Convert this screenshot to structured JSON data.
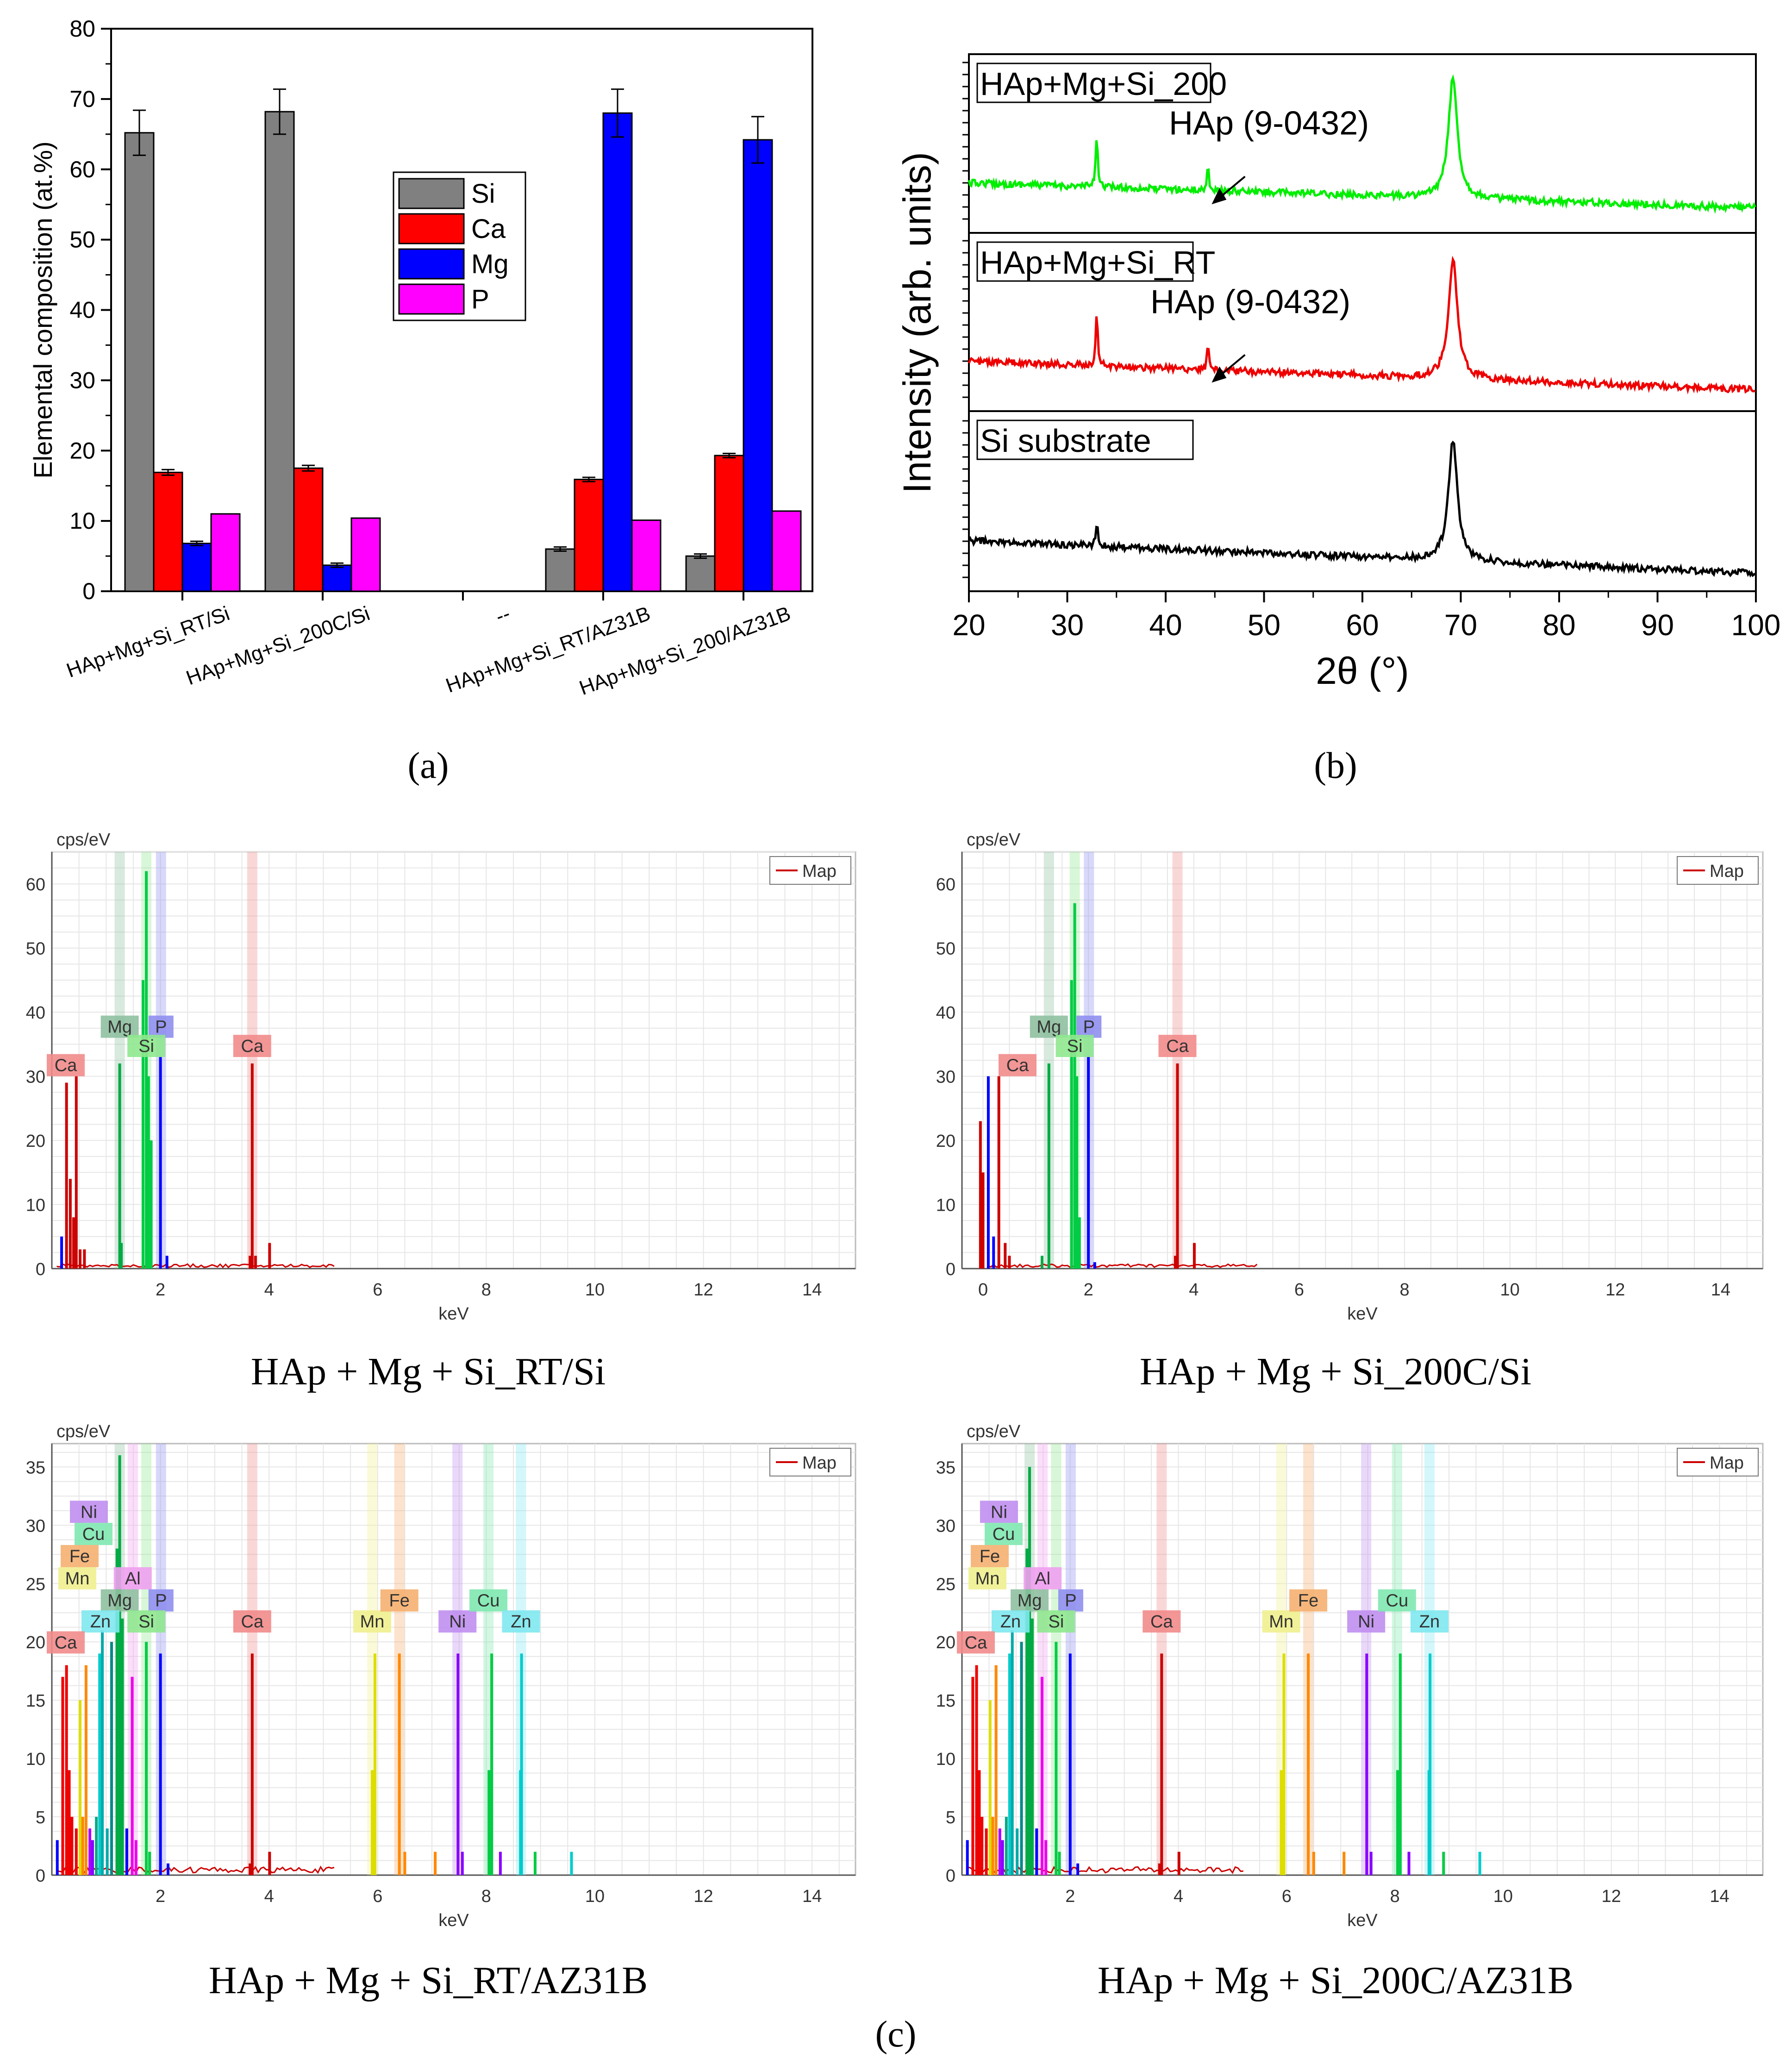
{
  "panel_labels": {
    "a": "(a)",
    "b": "(b)",
    "c": "(c)"
  },
  "colors": {
    "Si": "#808080",
    "Ca": "#ff0000",
    "Mg": "#0000ff",
    "P": "#ff00ff"
  },
  "chart_data": [
    {
      "id": "a",
      "type": "bar",
      "title": "",
      "xlabel": "",
      "ylabel": "Elemental composition (at.%)",
      "ylim": [
        0,
        80
      ],
      "yticks": [
        "0",
        "10",
        "20",
        "30",
        "40",
        "50",
        "60",
        "70",
        "80"
      ],
      "categories": [
        "HAp+Mg+Si_RT/Si",
        "HAp+Mg+Si_200C/Si",
        "--",
        "HAp+Mg+Si_RT/AZ31B",
        "HAp+Mg+Si_200/AZ31B"
      ],
      "legend_position": "center",
      "series": [
        {
          "name": "Si",
          "color": "#808080",
          "values": [
            65.2,
            68.2,
            0,
            6.0,
            5.0
          ],
          "errors": [
            3.2,
            3.2,
            0,
            0.3,
            0.3
          ]
        },
        {
          "name": "Ca",
          "color": "#ff0000",
          "values": [
            16.9,
            17.5,
            0,
            15.9,
            19.3
          ],
          "errors": [
            0.4,
            0.4,
            0,
            0.3,
            0.3
          ]
        },
        {
          "name": "Mg",
          "color": "#0000ff",
          "values": [
            6.8,
            3.7,
            0,
            68.0,
            64.2
          ],
          "errors": [
            0.3,
            0.3,
            0,
            3.4,
            3.3
          ]
        },
        {
          "name": "P",
          "color": "#ff00ff",
          "values": [
            11.0,
            10.4,
            0,
            10.1,
            11.4
          ],
          "errors": [
            0,
            0,
            0,
            0,
            0
          ]
        }
      ]
    },
    {
      "id": "b",
      "type": "line",
      "xlabel": "2θ (°)",
      "ylabel": "Intensity (arb. units)",
      "xlim": [
        20,
        100
      ],
      "xticks": [
        "20",
        "30",
        "40",
        "50",
        "60",
        "70",
        "80",
        "90",
        "100"
      ],
      "series": [
        {
          "name": "HAp+Mg+Si_200",
          "color": "#00ee00",
          "baseline": [
            0.72,
            0.86
          ],
          "peaks": [
            [
              33.0,
              0.45
            ],
            [
              44.3,
              0.2
            ],
            [
              69.2,
              1.0
            ]
          ],
          "annotation": "HAp (9-0432)"
        },
        {
          "name": "HAp+Mg+Si_RT",
          "color": "#ee0000",
          "baseline": [
            0.72,
            0.88
          ],
          "peaks": [
            [
              33.0,
              0.45
            ],
            [
              44.3,
              0.2
            ],
            [
              69.2,
              1.0
            ]
          ],
          "annotation": "HAp (9-0432)"
        },
        {
          "name": "Si substrate",
          "color": "#000000",
          "baseline": [
            0.72,
            0.9
          ],
          "peaks": [
            [
              33.0,
              0.2
            ],
            [
              69.2,
              1.0
            ]
          ],
          "annotation": ""
        }
      ]
    },
    {
      "id": "c1",
      "type": "bar",
      "subtype": "eds-spectrum",
      "caption": "HAp + Mg + Si_RT/Si",
      "unit_label": "cps/eV",
      "xlabel": "keV",
      "legend": "Map",
      "xlim": [
        0,
        14.8
      ],
      "ylim": [
        0,
        65
      ],
      "xticks": [
        "2",
        "4",
        "6",
        "8",
        "10",
        "12",
        "14"
      ],
      "yticks": [
        "0",
        "10",
        "20",
        "30",
        "40",
        "50",
        "60"
      ],
      "element_labels": [
        "Mg",
        "P",
        "Si",
        "Ca",
        "Ca"
      ],
      "lines": [
        {
          "x": 0.18,
          "y": 5,
          "color": "#0000ff"
        },
        {
          "x": 0.27,
          "y": 29,
          "color": "#cc0000"
        },
        {
          "x": 0.34,
          "y": 14,
          "color": "#cc0000"
        },
        {
          "x": 0.4,
          "y": 8,
          "color": "#cc0000"
        },
        {
          "x": 0.45,
          "y": 30,
          "color": "#cc0000"
        },
        {
          "x": 0.52,
          "y": 3,
          "color": "#cc0000"
        },
        {
          "x": 0.6,
          "y": 3,
          "color": "#cc0000"
        },
        {
          "x": 1.25,
          "y": 32,
          "color": "#00aa44"
        },
        {
          "x": 1.28,
          "y": 4,
          "color": "#00aa44"
        },
        {
          "x": 1.68,
          "y": 45,
          "color": "#00cc44"
        },
        {
          "x": 1.74,
          "y": 62,
          "color": "#00cc44"
        },
        {
          "x": 1.78,
          "y": 30,
          "color": "#00cc44"
        },
        {
          "x": 1.83,
          "y": 20,
          "color": "#00cc44"
        },
        {
          "x": 2.0,
          "y": 33,
          "color": "#0000ff"
        },
        {
          "x": 2.12,
          "y": 2,
          "color": "#0000ff"
        },
        {
          "x": 3.65,
          "y": 2,
          "color": "#cc0000"
        },
        {
          "x": 3.69,
          "y": 32,
          "color": "#cc0000"
        },
        {
          "x": 3.75,
          "y": 2,
          "color": "#cc0000"
        },
        {
          "x": 4.01,
          "y": 4,
          "color": "#cc0000"
        }
      ]
    },
    {
      "id": "c2",
      "type": "bar",
      "subtype": "eds-spectrum",
      "caption": "HAp + Mg + Si_200C/Si",
      "unit_label": "cps/eV",
      "xlabel": "keV",
      "legend": "Map",
      "xlim": [
        -0.4,
        14.8
      ],
      "ylim": [
        0,
        65
      ],
      "xticks": [
        "0",
        "2",
        "4",
        "6",
        "8",
        "10",
        "12",
        "14"
      ],
      "yticks": [
        "0",
        "10",
        "20",
        "30",
        "40",
        "50",
        "60"
      ],
      "element_labels": [
        "Mg",
        "P",
        "Si",
        "Ca",
        "Ca"
      ],
      "lines": [
        {
          "x": -0.05,
          "y": 23,
          "color": "#cc0000"
        },
        {
          "x": 0.0,
          "y": 15,
          "color": "#cc0000"
        },
        {
          "x": 0.1,
          "y": 30,
          "color": "#0000ff"
        },
        {
          "x": 0.2,
          "y": 5,
          "color": "#0000ff"
        },
        {
          "x": 0.3,
          "y": 30,
          "color": "#cc0000"
        },
        {
          "x": 0.42,
          "y": 4,
          "color": "#cc0000"
        },
        {
          "x": 0.5,
          "y": 2,
          "color": "#cc0000"
        },
        {
          "x": 1.12,
          "y": 2,
          "color": "#00aa44"
        },
        {
          "x": 1.25,
          "y": 32,
          "color": "#00aa44"
        },
        {
          "x": 1.68,
          "y": 45,
          "color": "#00cc44"
        },
        {
          "x": 1.74,
          "y": 57,
          "color": "#00cc44"
        },
        {
          "x": 1.78,
          "y": 30,
          "color": "#00cc44"
        },
        {
          "x": 1.83,
          "y": 8,
          "color": "#00cc44"
        },
        {
          "x": 2.0,
          "y": 33,
          "color": "#0000ff"
        },
        {
          "x": 2.12,
          "y": 1,
          "color": "#0000ff"
        },
        {
          "x": 3.65,
          "y": 2,
          "color": "#cc0000"
        },
        {
          "x": 3.69,
          "y": 32,
          "color": "#cc0000"
        },
        {
          "x": 4.01,
          "y": 4,
          "color": "#cc0000"
        }
      ]
    },
    {
      "id": "c3",
      "type": "bar",
      "subtype": "eds-spectrum",
      "caption": "HAp + Mg + Si_RT/AZ31B",
      "unit_label": "cps/eV",
      "xlabel": "keV",
      "legend": "Map",
      "xlim": [
        0,
        14.8
      ],
      "ylim": [
        0,
        37
      ],
      "xticks": [
        "2",
        "4",
        "6",
        "8",
        "10",
        "12",
        "14"
      ],
      "yticks": [
        "0",
        "5",
        "10",
        "15",
        "20",
        "25",
        "30",
        "35"
      ],
      "element_labels": [
        "Ni",
        "Cu",
        "Fe",
        "Mn",
        "Al",
        "Mg",
        "P",
        "Zn",
        "Si",
        "Ca",
        "Ca",
        "Mn",
        "Fe",
        "Ni",
        "Cu",
        "Zn"
      ],
      "lines": [
        {
          "x": 0.1,
          "y": 3,
          "color": "#0000ff"
        },
        {
          "x": 0.2,
          "y": 17,
          "color": "#ee0000"
        },
        {
          "x": 0.27,
          "y": 18,
          "color": "#ee0000"
        },
        {
          "x": 0.32,
          "y": 9,
          "color": "#ee0000"
        },
        {
          "x": 0.37,
          "y": 5,
          "color": "#ee0000"
        },
        {
          "x": 0.45,
          "y": 4,
          "color": "#ee0000"
        },
        {
          "x": 0.52,
          "y": 15,
          "color": "#dddd00"
        },
        {
          "x": 0.57,
          "y": 5,
          "color": "#ff8800"
        },
        {
          "x": 0.63,
          "y": 18,
          "color": "#ff8800"
        },
        {
          "x": 0.7,
          "y": 4,
          "color": "#aa00ff"
        },
        {
          "x": 0.75,
          "y": 3,
          "color": "#8800ff"
        },
        {
          "x": 0.82,
          "y": 5,
          "color": "#00aa88"
        },
        {
          "x": 0.88,
          "y": 19,
          "color": "#00cccc"
        },
        {
          "x": 0.93,
          "y": 21,
          "color": "#00aaaa"
        },
        {
          "x": 1.02,
          "y": 4,
          "color": "#00aaaa"
        },
        {
          "x": 1.1,
          "y": 20,
          "color": "#008888"
        },
        {
          "x": 1.2,
          "y": 28,
          "color": "#00aa44"
        },
        {
          "x": 1.25,
          "y": 36,
          "color": "#00aa44"
        },
        {
          "x": 1.3,
          "y": 22,
          "color": "#00aa44"
        },
        {
          "x": 1.38,
          "y": 4,
          "color": "#0000ff"
        },
        {
          "x": 1.48,
          "y": 17,
          "color": "#ee00ee"
        },
        {
          "x": 1.55,
          "y": 3,
          "color": "#ee00ee"
        },
        {
          "x": 1.74,
          "y": 20,
          "color": "#00cc44"
        },
        {
          "x": 1.8,
          "y": 2,
          "color": "#00cc44"
        },
        {
          "x": 2.0,
          "y": 19,
          "color": "#0000ff"
        },
        {
          "x": 2.14,
          "y": 1,
          "color": "#0000ff"
        },
        {
          "x": 3.65,
          "y": 1,
          "color": "#cc0000"
        },
        {
          "x": 3.69,
          "y": 19,
          "color": "#cc0000"
        },
        {
          "x": 4.01,
          "y": 2,
          "color": "#cc0000"
        },
        {
          "x": 5.9,
          "y": 9,
          "color": "#dddd00"
        },
        {
          "x": 5.95,
          "y": 19,
          "color": "#dddd00"
        },
        {
          "x": 6.4,
          "y": 19,
          "color": "#ff8800"
        },
        {
          "x": 6.5,
          "y": 2,
          "color": "#ff8800"
        },
        {
          "x": 7.06,
          "y": 2,
          "color": "#ff8800"
        },
        {
          "x": 7.48,
          "y": 19,
          "color": "#8800ff"
        },
        {
          "x": 7.56,
          "y": 2,
          "color": "#8800ff"
        },
        {
          "x": 8.05,
          "y": 9,
          "color": "#00cc44"
        },
        {
          "x": 8.1,
          "y": 19,
          "color": "#00cc44"
        },
        {
          "x": 8.26,
          "y": 2,
          "color": "#8800ff"
        },
        {
          "x": 8.63,
          "y": 9,
          "color": "#00cccc"
        },
        {
          "x": 8.65,
          "y": 19,
          "color": "#00cccc"
        },
        {
          "x": 8.9,
          "y": 2,
          "color": "#00cc44"
        },
        {
          "x": 9.57,
          "y": 2,
          "color": "#00cccc"
        }
      ]
    },
    {
      "id": "c4",
      "type": "bar",
      "subtype": "eds-spectrum",
      "caption": "HAp + Mg + Si_200C/AZ31B",
      "unit_label": "cps/eV",
      "xlabel": "keV",
      "legend": "Map",
      "xlim": [
        0,
        14.8
      ],
      "ylim": [
        0,
        37
      ],
      "xticks": [
        "2",
        "4",
        "6",
        "8",
        "10",
        "12",
        "14"
      ],
      "yticks": [
        "0",
        "5",
        "10",
        "15",
        "20",
        "25",
        "30",
        "35"
      ],
      "element_labels": [
        "Ni",
        "Cu",
        "Fe",
        "Mn",
        "Al",
        "Mg",
        "P",
        "Zn",
        "Si",
        "Ca",
        "Ca",
        "Mn",
        "Fe",
        "Ni",
        "Cu",
        "Zn"
      ],
      "lines": [
        {
          "x": 0.1,
          "y": 3,
          "color": "#0000ff"
        },
        {
          "x": 0.2,
          "y": 17,
          "color": "#ee0000"
        },
        {
          "x": 0.27,
          "y": 18,
          "color": "#ee0000"
        },
        {
          "x": 0.32,
          "y": 9,
          "color": "#ee0000"
        },
        {
          "x": 0.37,
          "y": 5,
          "color": "#ee0000"
        },
        {
          "x": 0.45,
          "y": 4,
          "color": "#ee0000"
        },
        {
          "x": 0.52,
          "y": 15,
          "color": "#dddd00"
        },
        {
          "x": 0.57,
          "y": 5,
          "color": "#ff8800"
        },
        {
          "x": 0.63,
          "y": 18,
          "color": "#ff8800"
        },
        {
          "x": 0.7,
          "y": 4,
          "color": "#aa00ff"
        },
        {
          "x": 0.75,
          "y": 3,
          "color": "#8800ff"
        },
        {
          "x": 0.82,
          "y": 5,
          "color": "#00aa88"
        },
        {
          "x": 0.88,
          "y": 19,
          "color": "#00cccc"
        },
        {
          "x": 0.93,
          "y": 21,
          "color": "#00aaaa"
        },
        {
          "x": 1.02,
          "y": 4,
          "color": "#00aaaa"
        },
        {
          "x": 1.1,
          "y": 20,
          "color": "#008888"
        },
        {
          "x": 1.2,
          "y": 28,
          "color": "#00aa44"
        },
        {
          "x": 1.25,
          "y": 35,
          "color": "#00aa44"
        },
        {
          "x": 1.3,
          "y": 22,
          "color": "#00aa44"
        },
        {
          "x": 1.38,
          "y": 4,
          "color": "#0000ff"
        },
        {
          "x": 1.48,
          "y": 17,
          "color": "#ee00ee"
        },
        {
          "x": 1.55,
          "y": 3,
          "color": "#ee00ee"
        },
        {
          "x": 1.74,
          "y": 20,
          "color": "#00cc44"
        },
        {
          "x": 1.8,
          "y": 2,
          "color": "#00cc44"
        },
        {
          "x": 2.0,
          "y": 19,
          "color": "#0000ff"
        },
        {
          "x": 2.14,
          "y": 1,
          "color": "#0000ff"
        },
        {
          "x": 3.65,
          "y": 1,
          "color": "#cc0000"
        },
        {
          "x": 3.69,
          "y": 19,
          "color": "#cc0000"
        },
        {
          "x": 4.01,
          "y": 2,
          "color": "#cc0000"
        },
        {
          "x": 5.9,
          "y": 9,
          "color": "#dddd00"
        },
        {
          "x": 5.95,
          "y": 19,
          "color": "#dddd00"
        },
        {
          "x": 6.4,
          "y": 19,
          "color": "#ff8800"
        },
        {
          "x": 6.5,
          "y": 2,
          "color": "#ff8800"
        },
        {
          "x": 7.06,
          "y": 2,
          "color": "#ff8800"
        },
        {
          "x": 7.48,
          "y": 19,
          "color": "#8800ff"
        },
        {
          "x": 7.56,
          "y": 2,
          "color": "#8800ff"
        },
        {
          "x": 8.05,
          "y": 9,
          "color": "#00cc44"
        },
        {
          "x": 8.1,
          "y": 19,
          "color": "#00cc44"
        },
        {
          "x": 8.26,
          "y": 2,
          "color": "#8800ff"
        },
        {
          "x": 8.63,
          "y": 9,
          "color": "#00cccc"
        },
        {
          "x": 8.65,
          "y": 19,
          "color": "#00cccc"
        },
        {
          "x": 8.9,
          "y": 2,
          "color": "#00cc44"
        },
        {
          "x": 9.57,
          "y": 2,
          "color": "#00cccc"
        }
      ]
    }
  ]
}
